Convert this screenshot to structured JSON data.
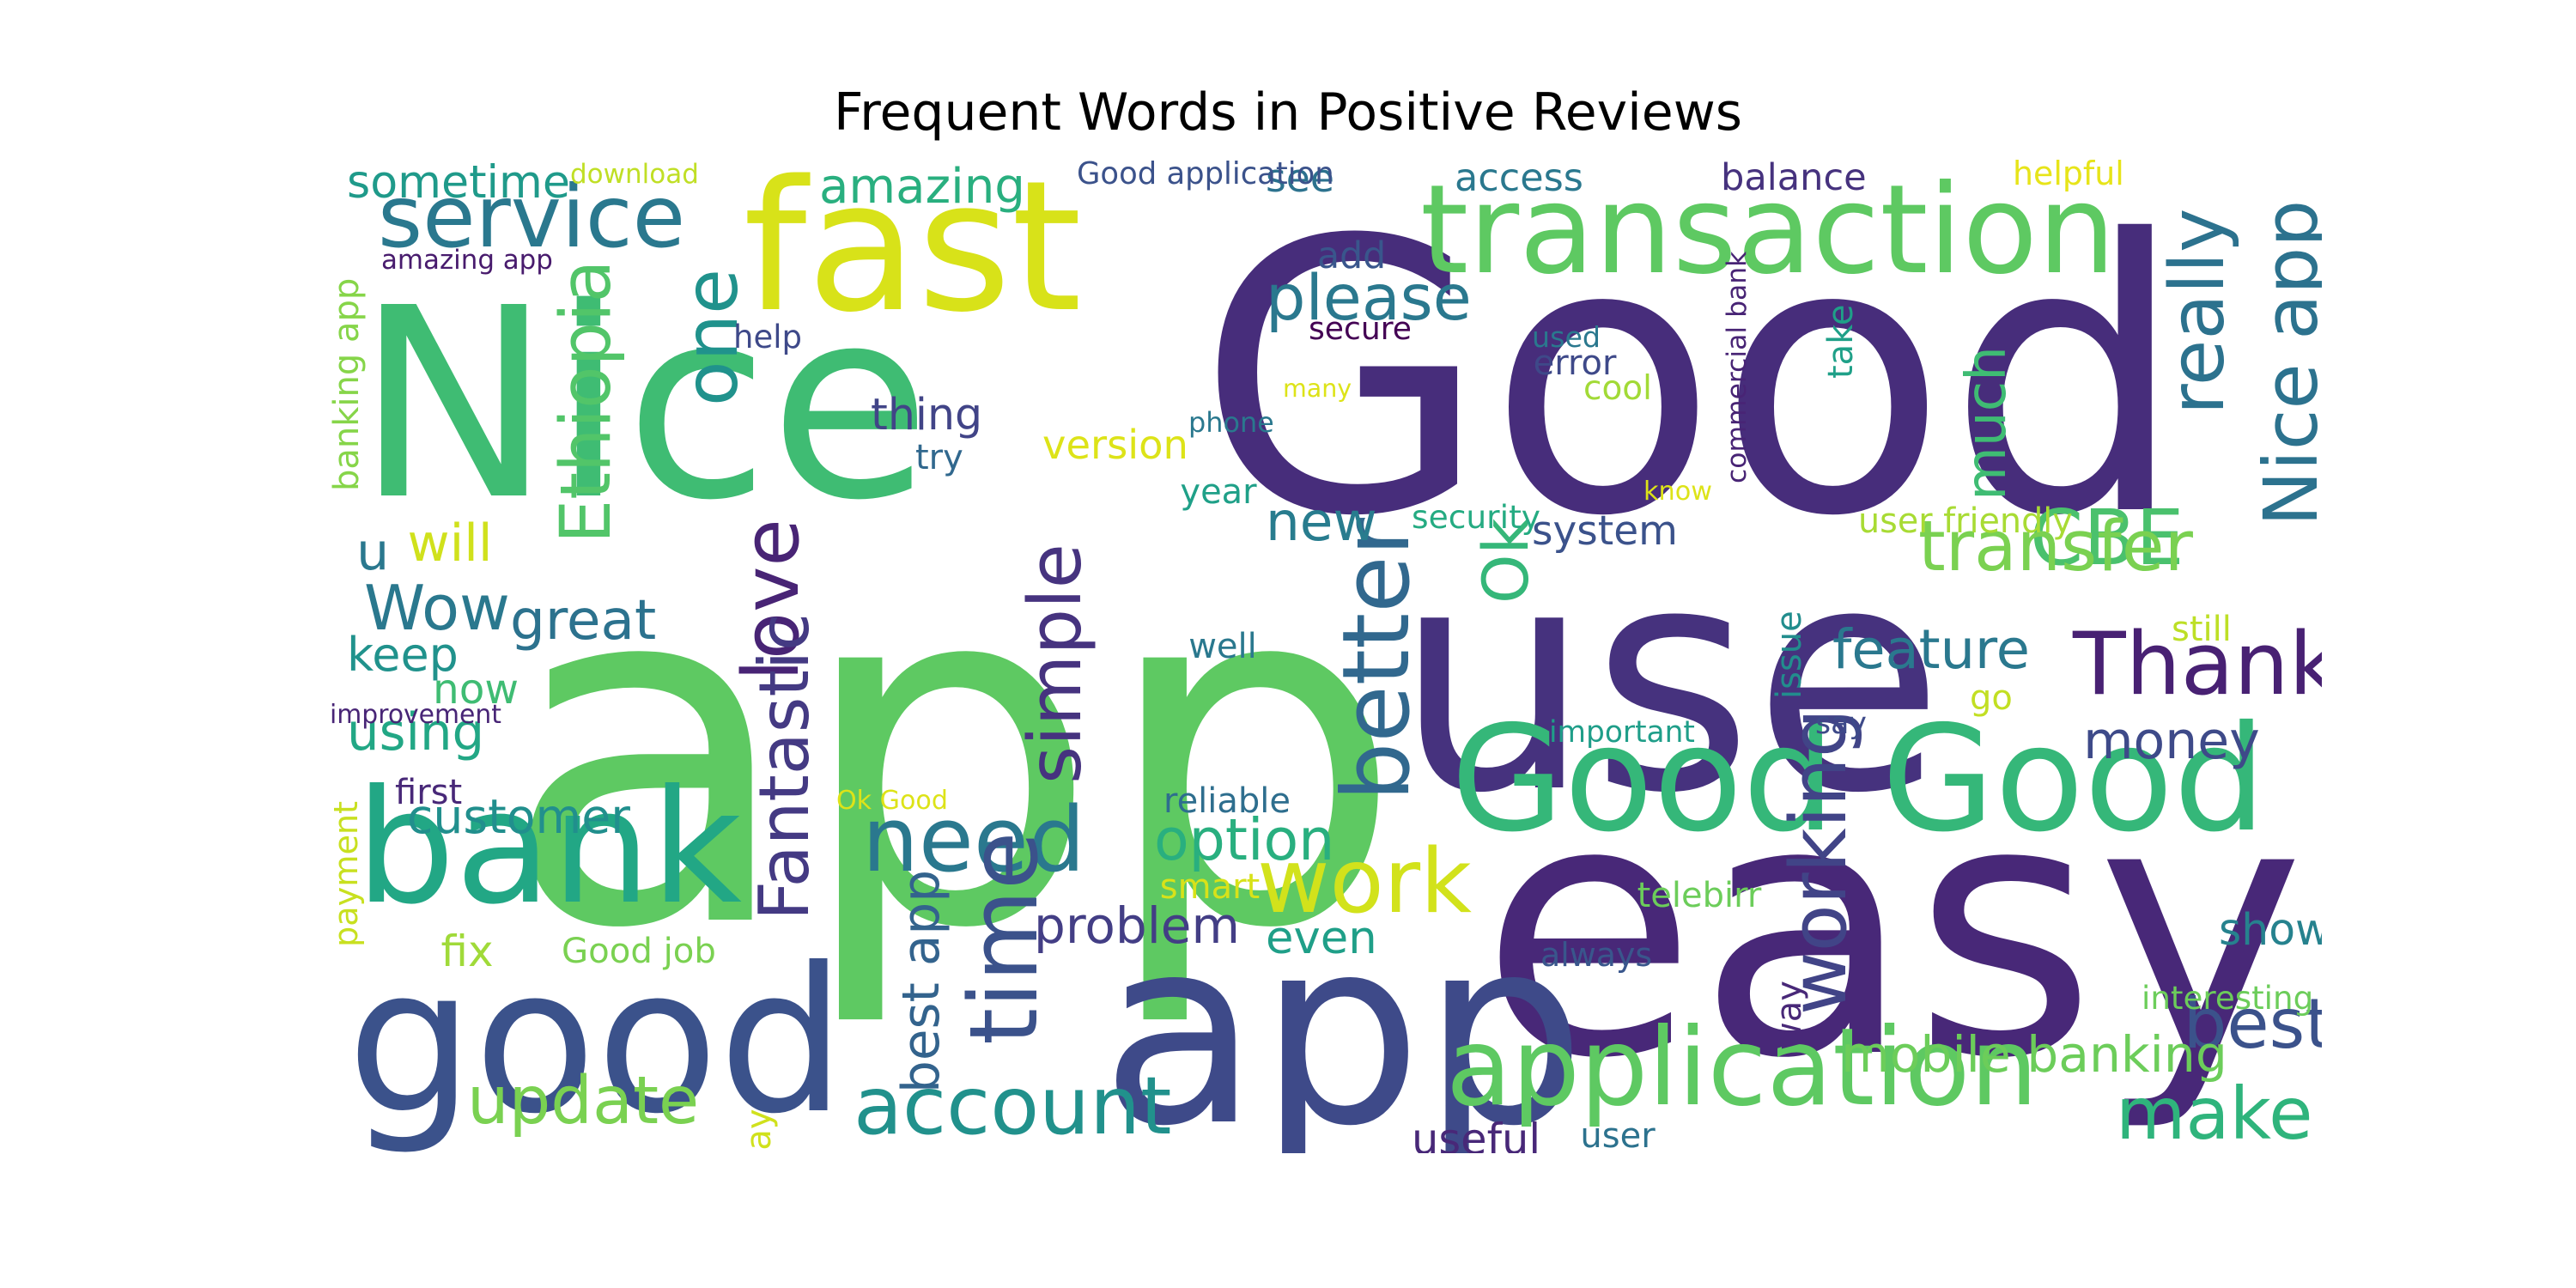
{
  "title": "Frequent Words in Positive Reviews",
  "words": [
    {
      "text": "app",
      "color": "#5ec962"
    },
    {
      "text": "Good",
      "color": "#472d7b"
    },
    {
      "text": "Nice",
      "color": "#3fbc73"
    },
    {
      "text": "use",
      "color": "#46327e"
    },
    {
      "text": "easy",
      "color": "#482878"
    },
    {
      "text": "fast",
      "color": "#d8e219"
    },
    {
      "text": "good",
      "color": "#3b528b"
    },
    {
      "text": "app",
      "color": "#3e4a89"
    },
    {
      "text": "Good Good",
      "color": "#35b779"
    },
    {
      "text": "transaction",
      "color": "#5ec962"
    },
    {
      "text": "bank",
      "color": "#22a785"
    },
    {
      "text": "application",
      "color": "#5ec962"
    },
    {
      "text": "service",
      "color": "#2a788e"
    },
    {
      "text": "account",
      "color": "#21918c"
    },
    {
      "text": "make",
      "color": "#2fb47c"
    },
    {
      "text": "Thank",
      "color": "#482173"
    },
    {
      "text": "CBE",
      "color": "#4ac16d"
    },
    {
      "text": "Nice app",
      "color": "#2c728e"
    },
    {
      "text": "need",
      "color": "#2a788e"
    },
    {
      "text": "work",
      "color": "#d2e21b"
    },
    {
      "text": "time",
      "color": "#3b528b"
    },
    {
      "text": "better",
      "color": "#31688e"
    },
    {
      "text": "love",
      "color": "#482475"
    },
    {
      "text": "one",
      "color": "#20928c"
    },
    {
      "text": "Wow",
      "color": "#2a788e"
    },
    {
      "text": "update",
      "color": "#7ad151"
    },
    {
      "text": "transfer",
      "color": "#7ad151"
    },
    {
      "text": "best",
      "color": "#3b528b"
    },
    {
      "text": "please",
      "color": "#2a788e"
    },
    {
      "text": "amazing",
      "color": "#29af7f"
    },
    {
      "text": "Ethiopia",
      "color": "#52c569"
    },
    {
      "text": "great",
      "color": "#2c728e"
    },
    {
      "text": "simple",
      "color": "#46337f"
    },
    {
      "text": "Fantastic",
      "color": "#443a83"
    },
    {
      "text": "working",
      "color": "#414487"
    },
    {
      "text": "really",
      "color": "#2c728e"
    },
    {
      "text": "much",
      "color": "#3fbc73"
    },
    {
      "text": "new",
      "color": "#287c8e"
    },
    {
      "text": "Ok",
      "color": "#35b779"
    },
    {
      "text": "mobile banking",
      "color": "#6ccd5a"
    },
    {
      "text": "feature",
      "color": "#2a788e"
    },
    {
      "text": "option",
      "color": "#29af7f"
    },
    {
      "text": "problem",
      "color": "#433e85"
    },
    {
      "text": "customer",
      "color": "#218f8d"
    },
    {
      "text": "money",
      "color": "#3e4a89"
    },
    {
      "text": "show",
      "color": "#26828e"
    },
    {
      "text": "sometime",
      "color": "#1f9a8a"
    },
    {
      "text": "keep",
      "color": "#20928c"
    },
    {
      "text": "using",
      "color": "#22a785"
    },
    {
      "text": "now",
      "color": "#3fbc73"
    },
    {
      "text": "will",
      "color": "#d0e11c"
    },
    {
      "text": "u",
      "color": "#2a788e"
    },
    {
      "text": "best app",
      "color": "#33638d"
    },
    {
      "text": "even",
      "color": "#1f9f88"
    },
    {
      "text": "thing",
      "color": "#414487"
    },
    {
      "text": "version",
      "color": "#dde318"
    },
    {
      "text": "user friendly",
      "color": "#a8db34"
    },
    {
      "text": "system",
      "color": "#3b528b"
    },
    {
      "text": "access",
      "color": "#2a788e"
    },
    {
      "text": "balance",
      "color": "#46327e"
    },
    {
      "text": "see",
      "color": "#2c728e"
    },
    {
      "text": "issue",
      "color": "#228d8d"
    },
    {
      "text": "useful",
      "color": "#482878"
    },
    {
      "text": "Good job",
      "color": "#7ad151"
    },
    {
      "text": "fix",
      "color": "#a0da39"
    },
    {
      "text": "add",
      "color": "#39568c"
    },
    {
      "text": "Good application",
      "color": "#3b528b"
    },
    {
      "text": "download",
      "color": "#c0df25"
    },
    {
      "text": "helpful",
      "color": "#e7e419"
    },
    {
      "text": "amazing app",
      "color": "#481b6d"
    },
    {
      "text": "banking app",
      "color": "#86d549"
    },
    {
      "text": "commercial bank",
      "color": "#482475"
    },
    {
      "text": "help",
      "color": "#3e4989"
    },
    {
      "text": "secure",
      "color": "#440154"
    },
    {
      "text": "used",
      "color": "#2a788e"
    },
    {
      "text": "error",
      "color": "#3e4989"
    },
    {
      "text": "cool",
      "color": "#a2da37"
    },
    {
      "text": "many",
      "color": "#dde318"
    },
    {
      "text": "take",
      "color": "#1fa088"
    },
    {
      "text": "phone",
      "color": "#2a788e"
    },
    {
      "text": "try",
      "color": "#31688e"
    },
    {
      "text": "year",
      "color": "#1fa088"
    },
    {
      "text": "know",
      "color": "#dde318"
    },
    {
      "text": "security",
      "color": "#25ab82"
    },
    {
      "text": "well",
      "color": "#2a788e"
    },
    {
      "text": "important",
      "color": "#1f9e89"
    },
    {
      "text": "say",
      "color": "#3e4a89"
    },
    {
      "text": "go",
      "color": "#c2df23"
    },
    {
      "text": "still",
      "color": "#bddf26"
    },
    {
      "text": "improvement",
      "color": "#482576"
    },
    {
      "text": "first",
      "color": "#482878"
    },
    {
      "text": "payment",
      "color": "#c8e020"
    },
    {
      "text": "Ok Good",
      "color": "#dde318"
    },
    {
      "text": "reliable",
      "color": "#2e6e8e"
    },
    {
      "text": "smart",
      "color": "#d8e219"
    },
    {
      "text": "telebirr",
      "color": "#6ccd5a"
    },
    {
      "text": "always",
      "color": "#39568c"
    },
    {
      "text": "way",
      "color": "#482878"
    },
    {
      "text": "interesting",
      "color": "#6ccd5a"
    },
    {
      "text": "day",
      "color": "#d0e11c"
    },
    {
      "text": "user",
      "color": "#2c728e"
    }
  ]
}
